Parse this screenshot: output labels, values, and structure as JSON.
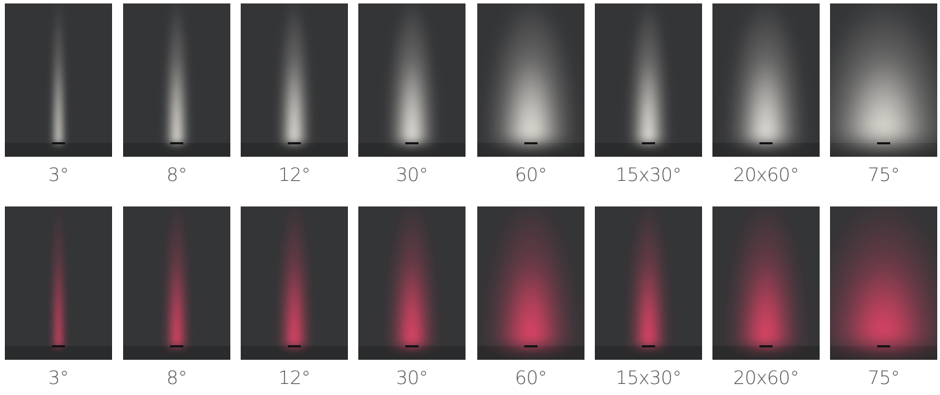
{
  "rows": [
    [
      "3°",
      "8°",
      "12°",
      "30°",
      "60°",
      "15x30°",
      "20x60°",
      "75°"
    ],
    [
      "3°",
      "8°",
      "12°",
      "30°",
      "60°",
      "15x30°",
      "20x60°",
      "75°"
    ]
  ]
}
